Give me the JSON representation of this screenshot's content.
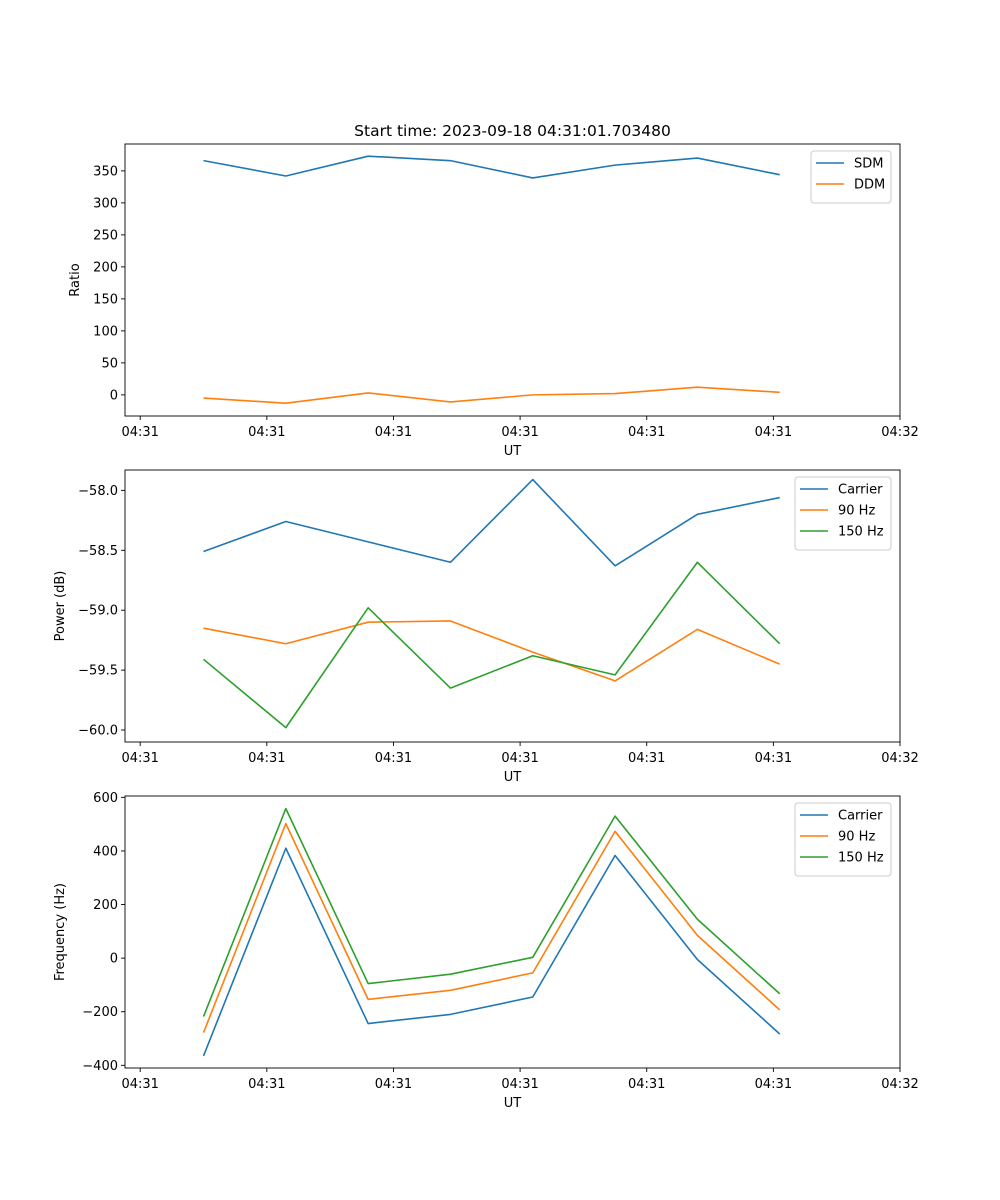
{
  "chart_data": [
    {
      "type": "line",
      "title": "Start time: 2023-09-18 04:31:01.703480",
      "xlabel": "UT",
      "ylabel": "Ratio",
      "x_tick_labels": [
        "04:31",
        "04:31",
        "04:31",
        "04:31",
        "04:31",
        "04:31",
        "04:32"
      ],
      "x_tick_values": [
        0,
        1,
        2,
        3,
        4,
        5,
        6
      ],
      "xlim": [
        -0.12,
        6.0
      ],
      "ylim": [
        -33,
        392
      ],
      "y_ticks": [
        0,
        50,
        100,
        150,
        200,
        250,
        300,
        350
      ],
      "y_tick_labels": [
        "0",
        "50",
        "100",
        "150",
        "200",
        "250",
        "300",
        "350"
      ],
      "x": [
        0.5,
        1.15,
        1.8,
        2.45,
        3.1,
        3.75,
        4.4,
        5.05
      ],
      "series": [
        {
          "name": "SDM",
          "color": "#1f77b4",
          "values": [
            366,
            342,
            373,
            366,
            339,
            359,
            370,
            344
          ]
        },
        {
          "name": "DDM",
          "color": "#ff7f0e",
          "values": [
            -5,
            -13,
            3,
            -11,
            0,
            2,
            12,
            4
          ]
        }
      ],
      "legend": "top-right"
    },
    {
      "type": "line",
      "title": "",
      "xlabel": "UT",
      "ylabel": "Power (dB)",
      "x_tick_labels": [
        "04:31",
        "04:31",
        "04:31",
        "04:31",
        "04:31",
        "04:31",
        "04:32"
      ],
      "x_tick_values": [
        0,
        1,
        2,
        3,
        4,
        5,
        6
      ],
      "xlim": [
        -0.12,
        6.0
      ],
      "ylim": [
        -60.1,
        -57.83
      ],
      "y_ticks": [
        -60.0,
        -59.5,
        -59.0,
        -58.5,
        -58.0
      ],
      "y_tick_labels": [
        "−60.0",
        "−59.5",
        "−59.0",
        "−58.5",
        "−58.0"
      ],
      "x": [
        0.5,
        1.15,
        1.8,
        2.45,
        3.1,
        3.75,
        4.4,
        5.05
      ],
      "series": [
        {
          "name": "Carrier",
          "color": "#1f77b4",
          "values": [
            -58.51,
            -58.26,
            -58.43,
            -58.6,
            -57.91,
            -58.63,
            -58.2,
            -58.06
          ]
        },
        {
          "name": "90 Hz",
          "color": "#ff7f0e",
          "values": [
            -59.15,
            -59.28,
            -59.1,
            -59.09,
            -59.35,
            -59.59,
            -59.16,
            -59.45
          ]
        },
        {
          "name": "150 Hz",
          "color": "#2ca02c",
          "values": [
            -59.41,
            -59.98,
            -58.98,
            -59.65,
            -59.38,
            -59.54,
            -58.6,
            -59.28
          ]
        }
      ],
      "legend": "top-right"
    },
    {
      "type": "line",
      "title": "",
      "xlabel": "UT",
      "ylabel": "Frequency (Hz)",
      "x_tick_labels": [
        "04:31",
        "04:31",
        "04:31",
        "04:31",
        "04:31",
        "04:31",
        "04:32"
      ],
      "x_tick_values": [
        0,
        1,
        2,
        3,
        4,
        5,
        6
      ],
      "xlim": [
        -0.12,
        6.0
      ],
      "ylim": [
        -410,
        605
      ],
      "y_ticks": [
        -400,
        -200,
        0,
        200,
        400,
        600
      ],
      "y_tick_labels": [
        "−400",
        "−200",
        "0",
        "200",
        "400",
        "600"
      ],
      "x": [
        0.5,
        1.15,
        1.8,
        2.45,
        3.1,
        3.75,
        4.4,
        5.05
      ],
      "series": [
        {
          "name": "Carrier",
          "color": "#1f77b4",
          "values": [
            -365,
            410,
            -244,
            -210,
            -145,
            383,
            -5,
            -283
          ]
        },
        {
          "name": "90 Hz",
          "color": "#ff7f0e",
          "values": [
            -278,
            502,
            -154,
            -120,
            -55,
            473,
            85,
            -193
          ]
        },
        {
          "name": "150 Hz",
          "color": "#2ca02c",
          "values": [
            -218,
            558,
            -95,
            -60,
            3,
            530,
            145,
            -133
          ]
        }
      ],
      "legend": "top-right"
    }
  ]
}
